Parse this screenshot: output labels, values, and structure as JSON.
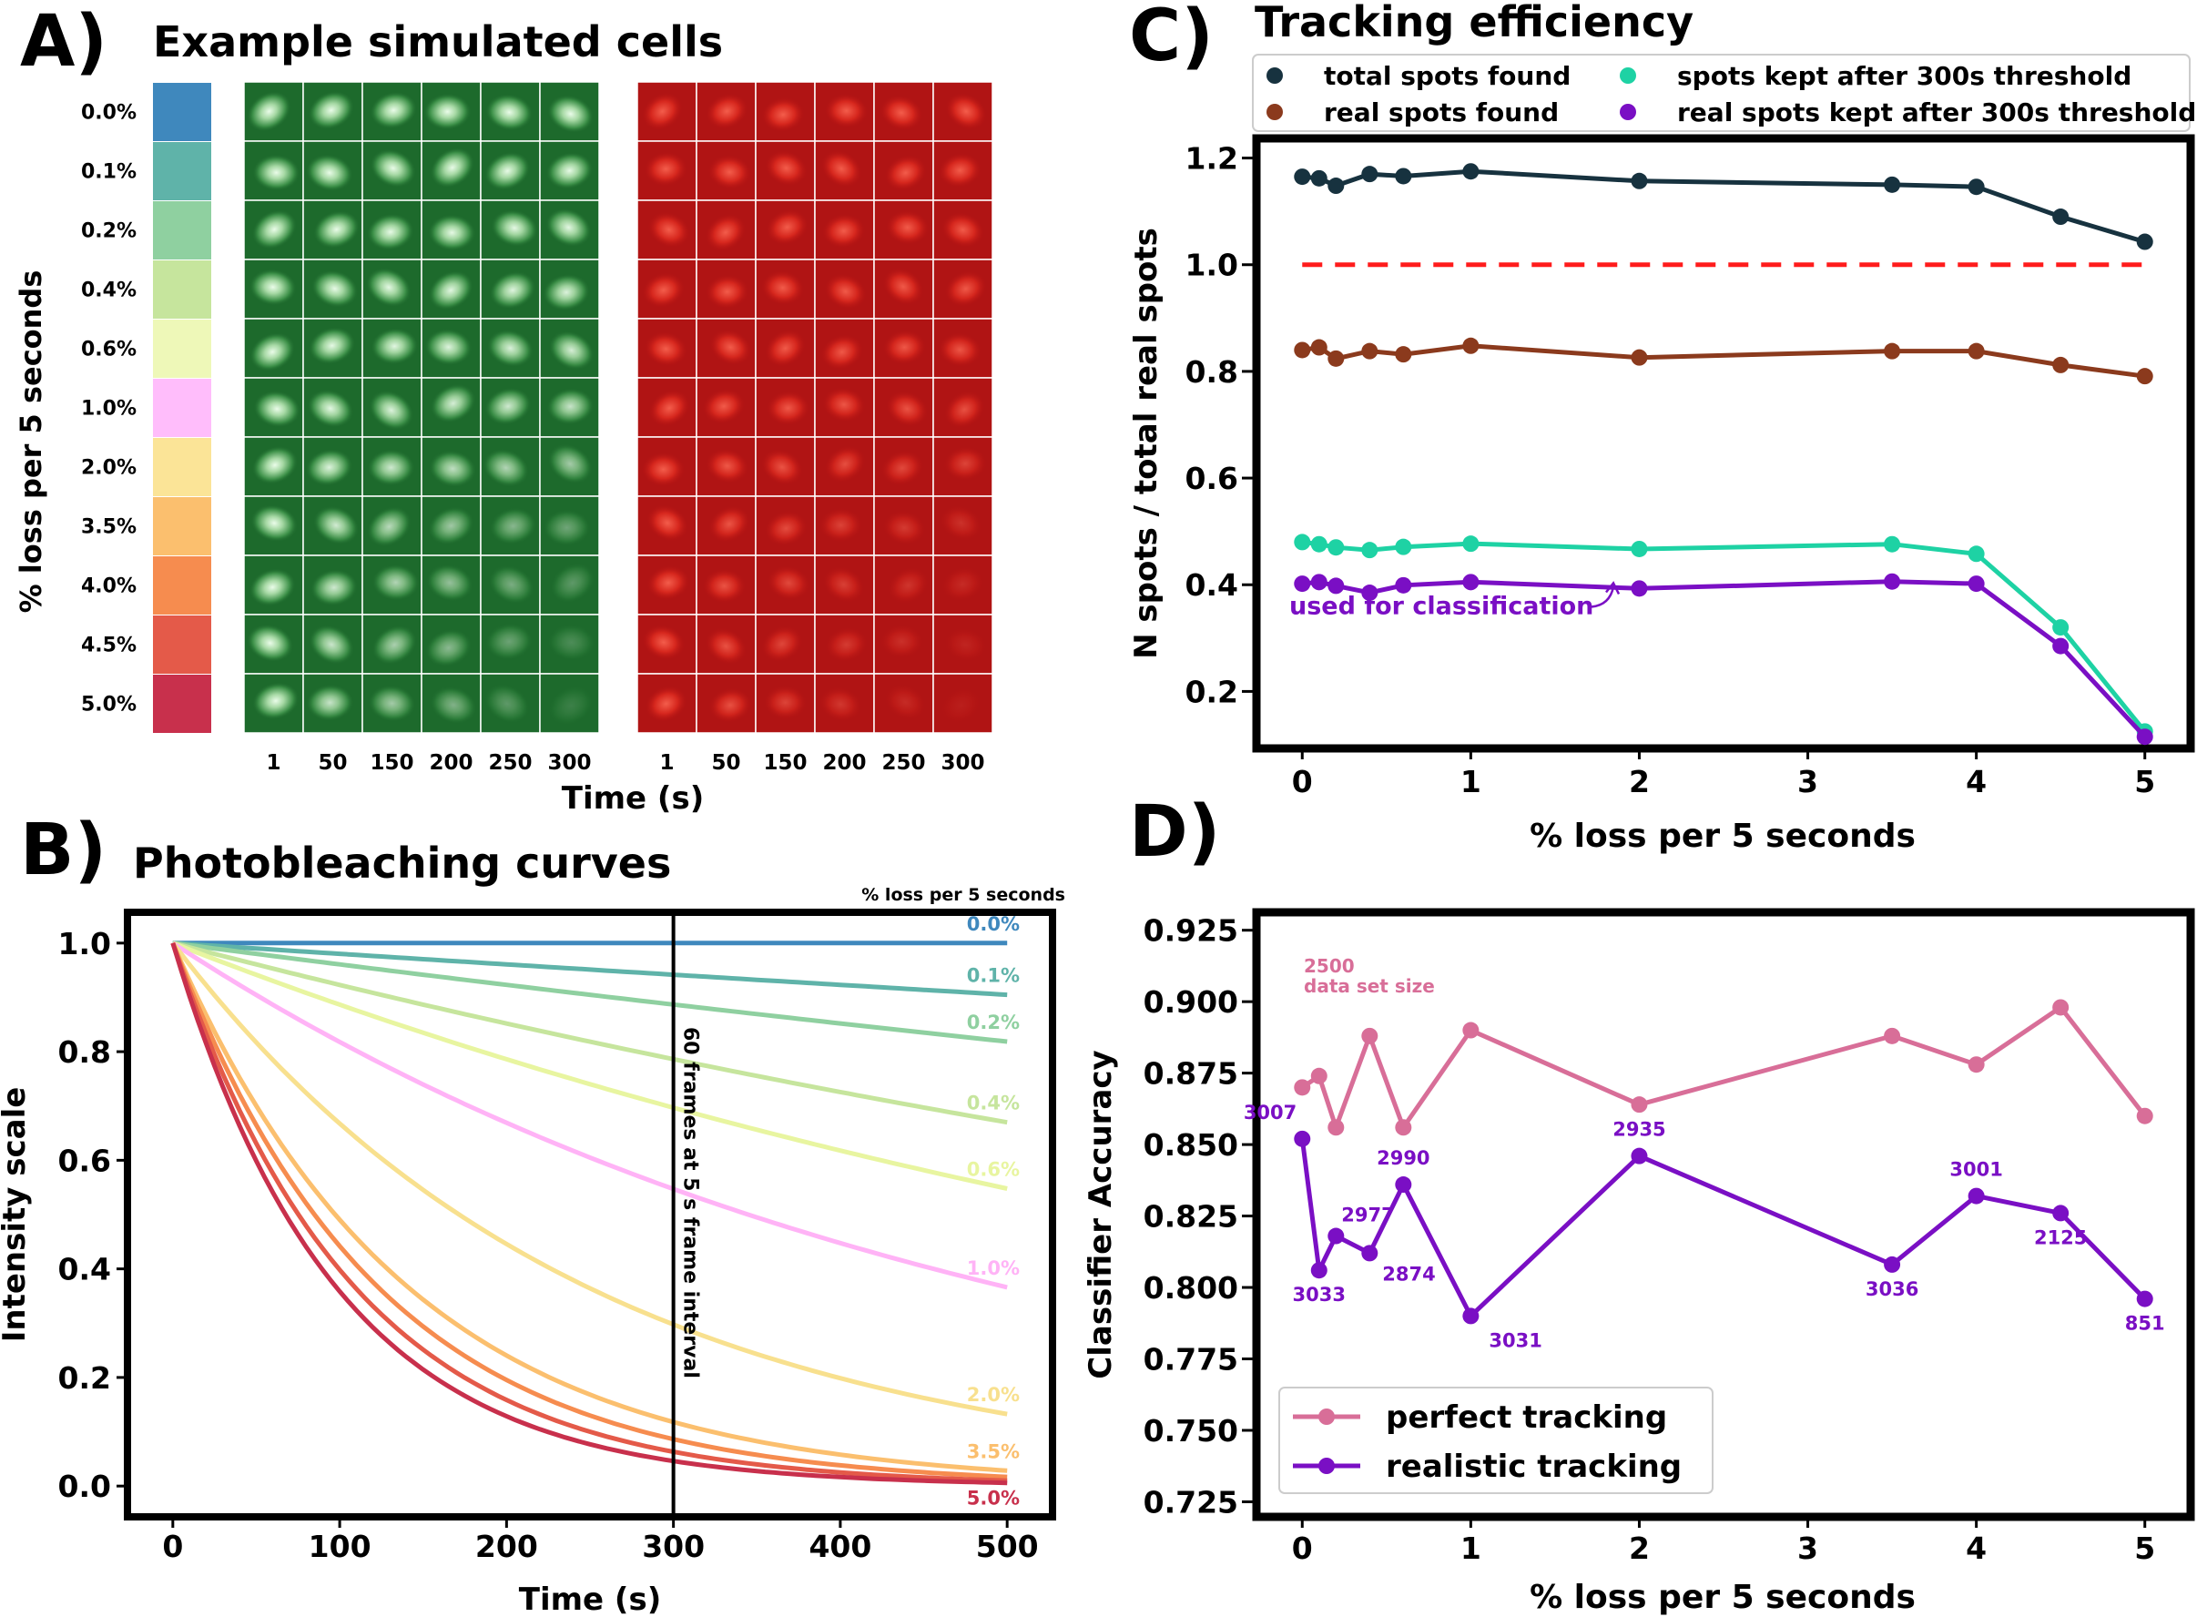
{
  "panels": {
    "a": {
      "letter": "A)",
      "title": "Example simulated cells"
    },
    "b": {
      "letter": "B)",
      "title": "Photobleaching curves"
    },
    "c": {
      "letter": "C)",
      "title": "Tracking efficiency"
    },
    "d": {
      "letter": "D)"
    }
  },
  "chart_data": [
    {
      "id": "A",
      "type": "image-grid",
      "title": "Example simulated cells",
      "ylabel": "% loss per 5 seconds",
      "xlabel": "Time (s)",
      "row_labels": [
        "0.0%",
        "0.1%",
        "0.2%",
        "0.4%",
        "0.6%",
        "1.0%",
        "2.0%",
        "3.5%",
        "4.0%",
        "4.5%",
        "5.0%"
      ],
      "row_colors": [
        "#3f88bd",
        "#5fb3a9",
        "#8fd0a0",
        "#c6e59d",
        "#eef8b8",
        "#ffbdfb",
        "#fbe497",
        "#fbbf6e",
        "#f68c4f",
        "#e45a49",
        "#c8304c"
      ],
      "col_labels": [
        "1",
        "50",
        "150",
        "200",
        "250",
        "300"
      ],
      "channels": [
        "green",
        "red"
      ]
    },
    {
      "id": "B",
      "type": "line",
      "title": "Photobleaching curves",
      "xlabel": "Time (s)",
      "ylabel": "Intensity scale",
      "legend_title": "% loss per 5 seconds",
      "xlim": [
        -25,
        525
      ],
      "ylim": [
        -0.05,
        1.05
      ],
      "xticks": [
        0,
        100,
        200,
        300,
        400,
        500
      ],
      "yticks": [
        0.0,
        0.2,
        0.4,
        0.6,
        0.8,
        1.0
      ],
      "x_start": 0,
      "x_end": 500,
      "series": [
        {
          "name": "0.0%",
          "loss_percent_per_5s": 0.0,
          "color": "#3f88bd"
        },
        {
          "name": "0.1%",
          "loss_percent_per_5s": 0.1,
          "color": "#5fb3a9"
        },
        {
          "name": "0.2%",
          "loss_percent_per_5s": 0.2,
          "color": "#8fd0a0"
        },
        {
          "name": "0.4%",
          "loss_percent_per_5s": 0.4,
          "color": "#c6e59d"
        },
        {
          "name": "0.6%",
          "loss_percent_per_5s": 0.6,
          "color": "#e8f5a0"
        },
        {
          "name": "1.0%",
          "loss_percent_per_5s": 1.0,
          "color": "#ffb3f6"
        },
        {
          "name": "2.0%",
          "loss_percent_per_5s": 2.0,
          "color": "#f8e08e"
        },
        {
          "name": "3.5%",
          "loss_percent_per_5s": 3.5,
          "color": "#fbbf6e"
        },
        {
          "name": "4.0%",
          "loss_percent_per_5s": 4.0,
          "color": "#f68c4f"
        },
        {
          "name": "4.5%",
          "loss_percent_per_5s": 4.5,
          "color": "#e45a49"
        },
        {
          "name": "5.0%",
          "loss_percent_per_5s": 5.0,
          "color": "#c8304c"
        }
      ],
      "labeled_series": [
        "0.0%",
        "0.1%",
        "0.2%",
        "0.4%",
        "0.6%",
        "1.0%",
        "2.0%",
        "3.5%",
        "5.0%"
      ],
      "vline": {
        "x": 300,
        "label": "60 frames at 5 s frame interval"
      }
    },
    {
      "id": "C",
      "type": "line",
      "title": "Tracking efficiency",
      "xlabel": "% loss per 5 seconds",
      "ylabel": "N spots / total real spots",
      "xlim": [
        -0.25,
        5.25
      ],
      "ylim": [
        0.1,
        1.23
      ],
      "xticks": [
        0,
        1,
        2,
        3,
        4,
        5
      ],
      "yticks": [
        0.2,
        0.4,
        0.6,
        0.8,
        1.0,
        1.2
      ],
      "x": [
        0,
        0.1,
        0.2,
        0.4,
        0.6,
        1,
        2,
        3.5,
        4,
        4.5,
        5
      ],
      "series": [
        {
          "name": "total spots found",
          "color": "#17323f",
          "values": [
            1.165,
            1.162,
            1.148,
            1.17,
            1.166,
            1.175,
            1.157,
            1.15,
            1.146,
            1.09,
            1.043
          ]
        },
        {
          "name": "real spots found",
          "color": "#8b3a1d",
          "values": [
            0.84,
            0.845,
            0.824,
            0.838,
            0.832,
            0.848,
            0.826,
            0.838,
            0.838,
            0.812,
            0.791
          ]
        },
        {
          "name": "spots kept after 300s threshold",
          "color": "#1ed2a4",
          "values": [
            0.48,
            0.476,
            0.47,
            0.465,
            0.471,
            0.477,
            0.467,
            0.476,
            0.458,
            0.32,
            0.125
          ]
        },
        {
          "name": "real spots kept after 300s threshold",
          "color": "#7a0fc4",
          "values": [
            0.402,
            0.405,
            0.398,
            0.385,
            0.399,
            0.405,
            0.393,
            0.406,
            0.402,
            0.285,
            0.115
          ]
        }
      ],
      "hline": {
        "y": 1.0,
        "color": "#ff1c1c",
        "style": "dashed"
      },
      "annotation": {
        "text": "used for classification",
        "color": "#7a0fc4"
      },
      "legend_position": "top"
    },
    {
      "id": "D",
      "type": "line",
      "xlabel": "% loss per 5 seconds",
      "ylabel": "Classifier Accuracy",
      "xlim": [
        -0.25,
        5.25
      ],
      "ylim": [
        0.721,
        0.93
      ],
      "xticks": [
        0,
        1,
        2,
        3,
        4,
        5
      ],
      "yticks": [
        0.725,
        0.75,
        0.775,
        0.8,
        0.825,
        0.85,
        0.875,
        0.9,
        0.925
      ],
      "x": [
        0,
        0.1,
        0.2,
        0.4,
        0.6,
        1,
        2,
        3.5,
        4,
        4.5,
        5
      ],
      "series": [
        {
          "name": "perfect tracking",
          "color": "#d86e98",
          "values": [
            0.87,
            0.874,
            0.856,
            0.888,
            0.856,
            0.89,
            0.864,
            0.888,
            0.878,
            0.898,
            0.86
          ]
        },
        {
          "name": "realistic tracking",
          "color": "#7a0fc4",
          "values": [
            0.852,
            0.806,
            0.818,
            0.812,
            0.836,
            0.79,
            0.846,
            0.808,
            0.832,
            0.826,
            0.796
          ]
        }
      ],
      "data_set_size_note": "2500\ndata set size",
      "realistic_sizes": [
        "3007",
        "3033",
        "2977",
        "2874",
        "2990",
        "3031",
        "2935",
        "3036",
        "3001",
        "2125",
        "851"
      ],
      "legend_position": "bottom-left"
    }
  ]
}
